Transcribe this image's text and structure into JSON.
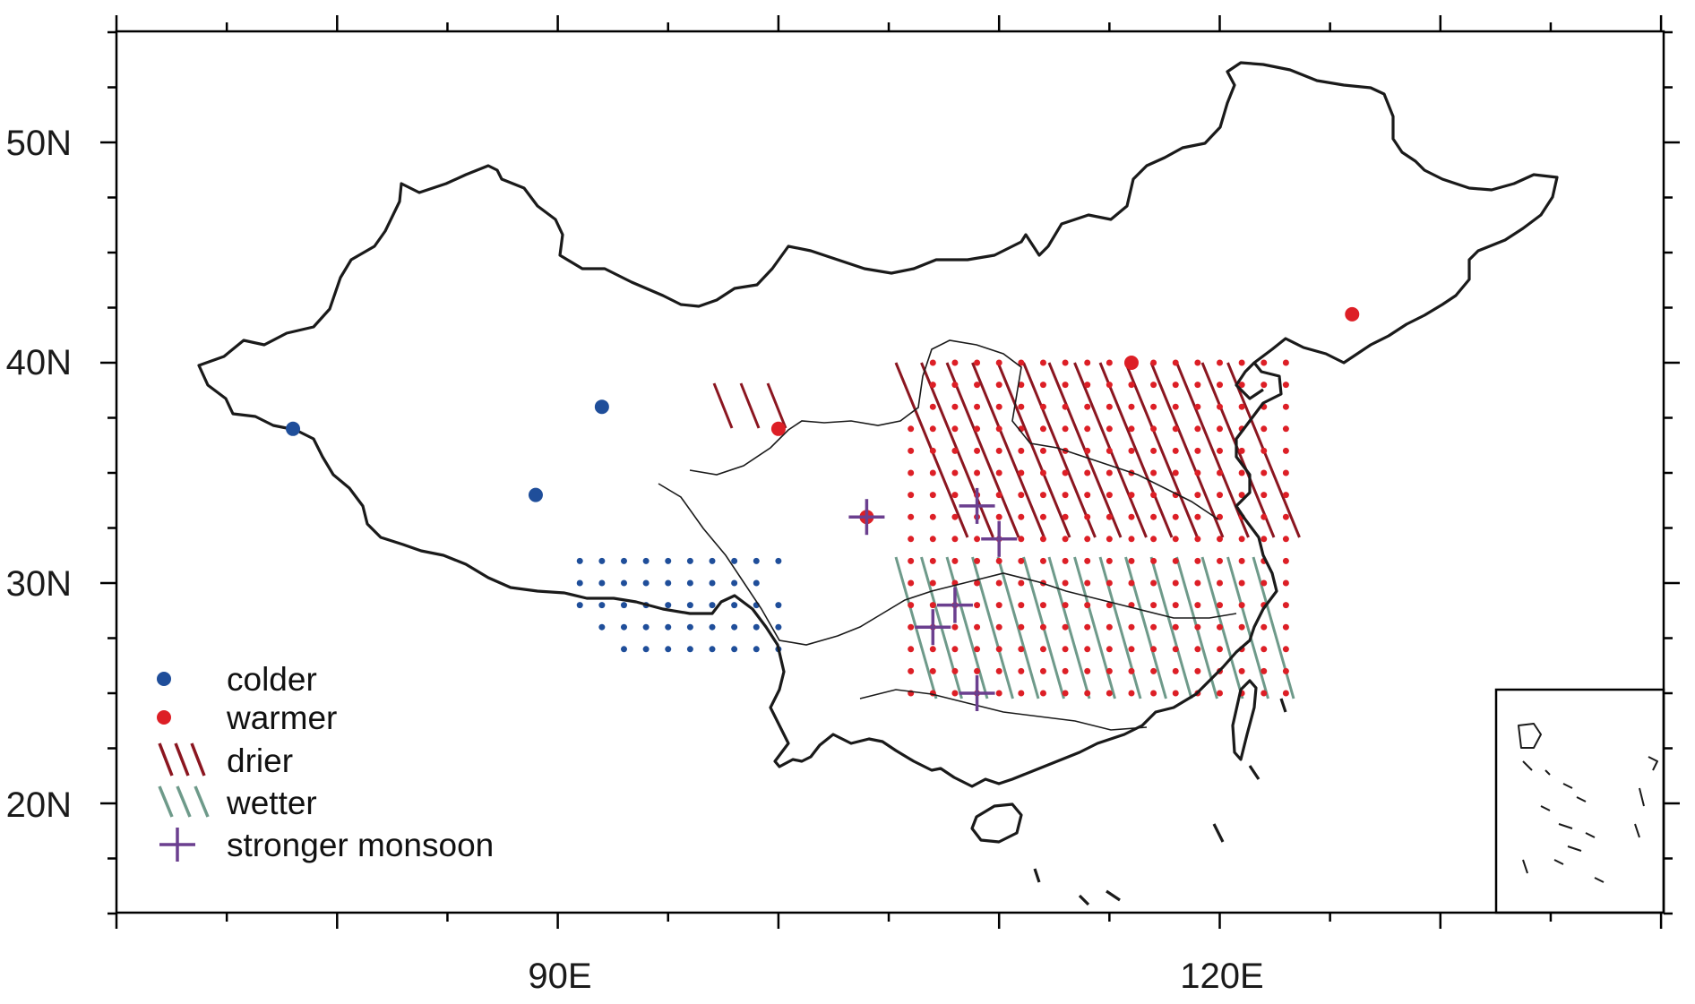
{
  "axes": {
    "lat_labels": [
      "20N",
      "30N",
      "40N",
      "50N"
    ],
    "lon_labels": [
      "90E",
      "120E"
    ]
  },
  "colors": {
    "colder": "#1f4e9a",
    "warmer": "#dd1f26",
    "drier": "#8b1620",
    "wetter": "#6e9a8a",
    "monsoon": "#6b3f8f"
  },
  "legend": {
    "colder": "colder",
    "warmer": "warmer",
    "drier": "drier",
    "wetter": "wetter",
    "monsoon": "stronger monsoon"
  },
  "sites": {
    "colder": [
      [
        78,
        37
      ],
      [
        89,
        34
      ],
      [
        92,
        38
      ]
    ],
    "warmer": [
      [
        100,
        37
      ],
      [
        104,
        33
      ],
      [
        116,
        40
      ],
      [
        126,
        42.2
      ]
    ],
    "monsoon": [
      [
        104,
        33
      ],
      [
        109,
        33.5
      ],
      [
        110,
        32
      ],
      [
        108,
        29
      ],
      [
        107,
        28
      ],
      [
        109,
        25
      ]
    ]
  }
}
